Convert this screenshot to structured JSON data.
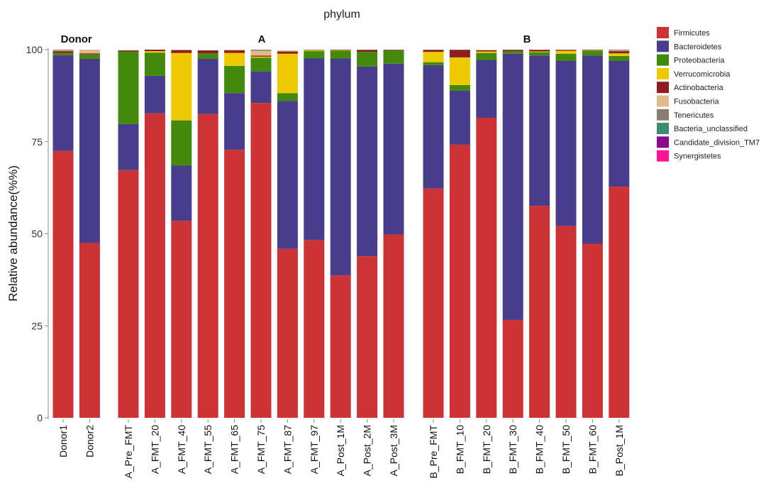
{
  "chart_data": {
    "type": "bar",
    "stacked": true,
    "title": "phylum",
    "ylabel": "Relative abundance(%%)",
    "xlabel": "",
    "ylim": [
      0,
      100
    ],
    "yticks": [
      0,
      25,
      50,
      75,
      100
    ],
    "grid": false,
    "legend_position": "right",
    "phyla": [
      "Firmicutes",
      "Bacteroidetes",
      "Proteobacteria",
      "Verrucomicrobia",
      "Actinobacteria",
      "Fusobacteria",
      "Tenericutes",
      "Bacteria_unclassified",
      "Candidate_division_TM7",
      "Synergistetes"
    ],
    "colors": [
      "#cd3234",
      "#473d8c",
      "#438a0c",
      "#eec900",
      "#8c1e1e",
      "#dfbb8c",
      "#8b7d71",
      "#3f8b72",
      "#8b0a8b",
      "#ff1493"
    ],
    "panels": [
      {
        "label": "Donor",
        "bars": [
          {
            "sample": "Donor1",
            "values": [
              72.5,
              26,
              0.6,
              0,
              0.5,
              0.2,
              0.2,
              0,
              0,
              0
            ]
          },
          {
            "sample": "Donor2",
            "values": [
              47.5,
              50,
              1.2,
              0,
              0.3,
              1,
              0,
              0,
              0,
              0
            ]
          }
        ]
      },
      {
        "label": "A",
        "bars": [
          {
            "sample": "A_Pre_FMT",
            "values": [
              67.3,
              12.5,
              19.7,
              0,
              0.3,
              0,
              0,
              0,
              0,
              0
            ]
          },
          {
            "sample": "A_FMT_20",
            "values": [
              82.7,
              10.2,
              6.3,
              0.4,
              0.4,
              0,
              0,
              0,
              0,
              0
            ]
          },
          {
            "sample": "A_FMT_40",
            "values": [
              53.5,
              15,
              12.3,
              18.3,
              0.8,
              0,
              0,
              0,
              0,
              0
            ]
          },
          {
            "sample": "A_FMT_55",
            "values": [
              82.5,
              15,
              1.5,
              0,
              0.8,
              0,
              0,
              0,
              0,
              0
            ]
          },
          {
            "sample": "A_FMT_65",
            "values": [
              72.8,
              15.4,
              7.4,
              3.5,
              0.7,
              0.2,
              0,
              0,
              0,
              0
            ]
          },
          {
            "sample": "A_FMT_75",
            "values": [
              85.5,
              8.6,
              3.7,
              0.3,
              0.3,
              1.3,
              0.3,
              0,
              0,
              0
            ]
          },
          {
            "sample": "A_FMT_87",
            "values": [
              45.9,
              40.2,
              2.1,
              10.7,
              0.6,
              0.3,
              0,
              0,
              0,
              0
            ]
          },
          {
            "sample": "A_FMT_97",
            "values": [
              48.3,
              49.4,
              1.9,
              0.2,
              0,
              0,
              0.2,
              0,
              0,
              0
            ]
          },
          {
            "sample": "A_Post_1M",
            "values": [
              38.7,
              58.9,
              2.1,
              0.1,
              0.1,
              0,
              0.1,
              0,
              0,
              0
            ]
          },
          {
            "sample": "A_Post_2M",
            "values": [
              43.9,
              51.5,
              4,
              0,
              0.5,
              0,
              0.1,
              0,
              0,
              0
            ]
          },
          {
            "sample": "A_Post_3M",
            "values": [
              49.8,
              46.4,
              3.6,
              0,
              0.1,
              0,
              0.1,
              0,
              0,
              0
            ]
          }
        ]
      },
      {
        "label": "B",
        "bars": [
          {
            "sample": "B_Pre_FMT",
            "values": [
              62.3,
              33.5,
              0.8,
              2.8,
              0.5,
              0,
              0.1,
              0,
              0,
              0
            ]
          },
          {
            "sample": "B_FMT_10",
            "values": [
              74.2,
              14.7,
              1.5,
              7.5,
              2,
              0,
              0.1,
              0,
              0,
              0
            ]
          },
          {
            "sample": "B_FMT_20",
            "values": [
              81.5,
              15.7,
              1.9,
              0.4,
              0.3,
              0.2,
              0,
              0,
              0,
              0
            ]
          },
          {
            "sample": "B_FMT_30",
            "values": [
              26.6,
              72.3,
              0.7,
              0,
              0.3,
              0,
              0.1,
              0,
              0,
              0
            ]
          },
          {
            "sample": "B_FMT_40",
            "values": [
              57.6,
              40.8,
              0.9,
              0.2,
              0.4,
              0,
              0.1,
              0,
              0,
              0
            ]
          },
          {
            "sample": "B_FMT_50",
            "values": [
              52.1,
              44.9,
              1.9,
              0.8,
              0.2,
              0,
              0.1,
              0,
              0,
              0
            ]
          },
          {
            "sample": "B_FMT_60",
            "values": [
              47.3,
              51.1,
              1.3,
              0.1,
              0.1,
              0,
              0.1,
              0,
              0,
              0
            ]
          },
          {
            "sample": "B_Post_1M",
            "values": [
              62.8,
              34.2,
              1.3,
              0.7,
              0.6,
              0.2,
              0.2,
              0,
              0,
              0
            ]
          }
        ]
      }
    ]
  }
}
